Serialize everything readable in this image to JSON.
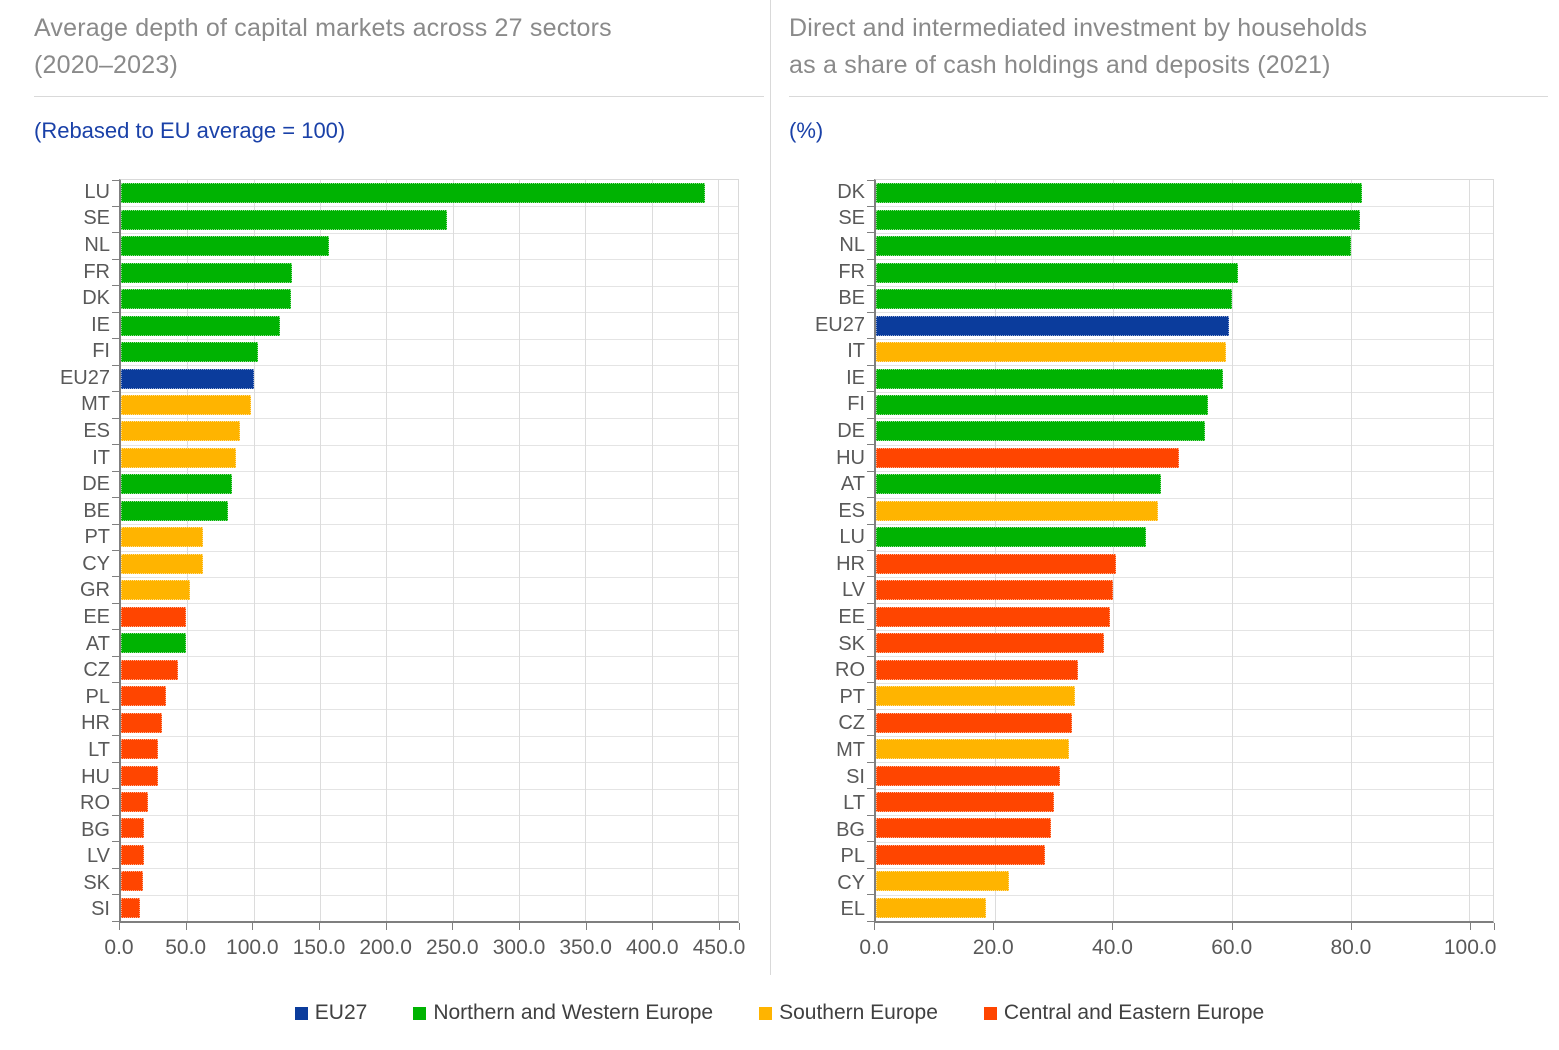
{
  "colors": {
    "regions": {
      "eu27": "#0B3C9C",
      "nw": "#00B302",
      "south": "#FFB400",
      "cee": "#FF4500"
    },
    "title_text": "#8A8A8A",
    "subtitle_text": "#1A41A8",
    "axis_text": "#595959",
    "legend_text": "#404040"
  },
  "legend": {
    "items": [
      {
        "label": "EU27",
        "region": "eu27"
      },
      {
        "label": "Northern and Western Europe",
        "region": "nw"
      },
      {
        "label": "Southern Europe",
        "region": "south"
      },
      {
        "label": "Central and Eastern Europe",
        "region": "cee"
      }
    ]
  },
  "chart_data": [
    {
      "type": "bar",
      "orientation": "horizontal",
      "title": "Average depth of capital markets across 27 sectors (2020–2023)",
      "title_lines": [
        "Average depth of capital markets across 27 sectors",
        "(2020–2023)"
      ],
      "subtitle": "(Rebased to EU average = 100)",
      "xlim": [
        0,
        465
      ],
      "grid": true,
      "xticks": [
        {
          "value": 0,
          "label": "0.0"
        },
        {
          "value": 50,
          "label": "50.0"
        },
        {
          "value": 100,
          "label": "100.0"
        },
        {
          "value": 150,
          "label": "150.0"
        },
        {
          "value": 200,
          "label": "200.0"
        },
        {
          "value": 250,
          "label": "250.0"
        },
        {
          "value": 300,
          "label": "300.0"
        },
        {
          "value": 350,
          "label": "350.0"
        },
        {
          "value": 400,
          "label": "400.0"
        },
        {
          "value": 450,
          "label": "450.0"
        }
      ],
      "items": [
        {
          "label": "LU",
          "value": 440,
          "region": "nw"
        },
        {
          "label": "SE",
          "value": 246,
          "region": "nw"
        },
        {
          "label": "NL",
          "value": 157,
          "region": "nw"
        },
        {
          "label": "FR",
          "value": 129,
          "region": "nw"
        },
        {
          "label": "DK",
          "value": 128,
          "region": "nw"
        },
        {
          "label": "IE",
          "value": 120,
          "region": "nw"
        },
        {
          "label": "FI",
          "value": 103,
          "region": "nw"
        },
        {
          "label": "EU27",
          "value": 100,
          "region": "eu27"
        },
        {
          "label": "MT",
          "value": 98,
          "region": "south"
        },
        {
          "label": "ES",
          "value": 90,
          "region": "south"
        },
        {
          "label": "IT",
          "value": 87,
          "region": "south"
        },
        {
          "label": "DE",
          "value": 84,
          "region": "nw"
        },
        {
          "label": "BE",
          "value": 81,
          "region": "nw"
        },
        {
          "label": "PT",
          "value": 62,
          "region": "south"
        },
        {
          "label": "CY",
          "value": 62,
          "region": "south"
        },
        {
          "label": "GR",
          "value": 52,
          "region": "south"
        },
        {
          "label": "EE",
          "value": 49,
          "region": "cee"
        },
        {
          "label": "AT",
          "value": 49,
          "region": "nw"
        },
        {
          "label": "CZ",
          "value": 43,
          "region": "cee"
        },
        {
          "label": "PL",
          "value": 34,
          "region": "cee"
        },
        {
          "label": "HR",
          "value": 31,
          "region": "cee"
        },
        {
          "label": "LT",
          "value": 28,
          "region": "cee"
        },
        {
          "label": "HU",
          "value": 28,
          "region": "cee"
        },
        {
          "label": "RO",
          "value": 20,
          "region": "cee"
        },
        {
          "label": "BG",
          "value": 17.5,
          "region": "cee"
        },
        {
          "label": "LV",
          "value": 17,
          "region": "cee"
        },
        {
          "label": "SK",
          "value": 16.5,
          "region": "cee"
        },
        {
          "label": "SI",
          "value": 14,
          "region": "cee"
        }
      ]
    },
    {
      "type": "bar",
      "orientation": "horizontal",
      "title": "Direct and intermediated investment by households as a share of cash holdings and deposits (2021)",
      "title_lines": [
        "Direct and intermediated investment by households",
        "as a share of cash holdings and deposits (2021)"
      ],
      "subtitle": "(%)",
      "xlim": [
        0,
        104
      ],
      "grid": true,
      "xticks": [
        {
          "value": 0,
          "label": "0.0"
        },
        {
          "value": 20,
          "label": "20.0"
        },
        {
          "value": 40,
          "label": "40.0"
        },
        {
          "value": 60,
          "label": "60.0"
        },
        {
          "value": 80,
          "label": "80.0"
        },
        {
          "value": 100,
          "label": "100.0"
        }
      ],
      "items": [
        {
          "label": "DK",
          "value": 82,
          "region": "nw"
        },
        {
          "label": "SE",
          "value": 81.5,
          "region": "nw"
        },
        {
          "label": "NL",
          "value": 80,
          "region": "nw"
        },
        {
          "label": "FR",
          "value": 61,
          "region": "nw"
        },
        {
          "label": "BE",
          "value": 60,
          "region": "nw"
        },
        {
          "label": "EU27",
          "value": 59.5,
          "region": "eu27"
        },
        {
          "label": "IT",
          "value": 59,
          "region": "south"
        },
        {
          "label": "IE",
          "value": 58.5,
          "region": "nw"
        },
        {
          "label": "FI",
          "value": 56,
          "region": "nw"
        },
        {
          "label": "DE",
          "value": 55.5,
          "region": "nw"
        },
        {
          "label": "HU",
          "value": 51,
          "region": "cee"
        },
        {
          "label": "AT",
          "value": 48,
          "region": "nw"
        },
        {
          "label": "ES",
          "value": 47.5,
          "region": "south"
        },
        {
          "label": "LU",
          "value": 45.5,
          "region": "nw"
        },
        {
          "label": "HR",
          "value": 40.5,
          "region": "cee"
        },
        {
          "label": "LV",
          "value": 40,
          "region": "cee"
        },
        {
          "label": "EE",
          "value": 39.5,
          "region": "cee"
        },
        {
          "label": "SK",
          "value": 38.5,
          "region": "cee"
        },
        {
          "label": "RO",
          "value": 34,
          "region": "cee"
        },
        {
          "label": "PT",
          "value": 33.5,
          "region": "south"
        },
        {
          "label": "CZ",
          "value": 33,
          "region": "cee"
        },
        {
          "label": "MT",
          "value": 32.5,
          "region": "south"
        },
        {
          "label": "SI",
          "value": 31,
          "region": "cee"
        },
        {
          "label": "LT",
          "value": 30,
          "region": "cee"
        },
        {
          "label": "BG",
          "value": 29.5,
          "region": "cee"
        },
        {
          "label": "PL",
          "value": 28.5,
          "region": "cee"
        },
        {
          "label": "CY",
          "value": 22.5,
          "region": "south"
        },
        {
          "label": "EL",
          "value": 18.5,
          "region": "south"
        }
      ]
    }
  ]
}
